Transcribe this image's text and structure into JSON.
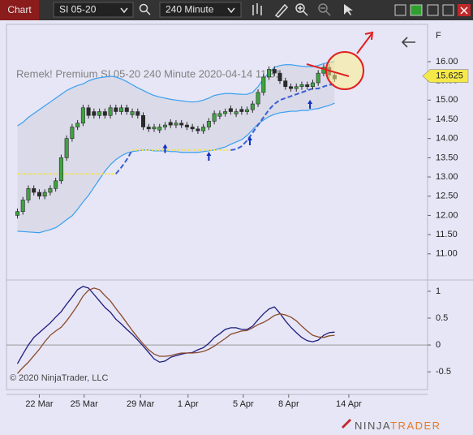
{
  "toolbar": {
    "tab": "Chart",
    "instrument": "SI 05-20",
    "interval": "240 Minute"
  },
  "chart_data": [
    {
      "type": "candlestick",
      "title": "Remek!  Premium  SI 05-20  240 Minute  2020-04-14 11:31",
      "corner_label": "F",
      "copyright": "© 2020 NinjaTrader, LLC",
      "logo_left": "NINJA",
      "logo_right": "TRADER",
      "x": [
        2,
        3,
        4,
        5,
        6,
        7,
        8,
        9,
        10,
        11,
        12,
        13,
        14,
        15,
        16,
        17,
        18,
        19,
        20,
        21,
        22,
        23,
        24,
        25,
        26,
        27,
        28,
        29,
        30,
        31,
        32,
        33,
        34,
        35,
        36,
        37,
        38,
        39,
        40,
        41,
        42,
        43,
        44,
        45,
        46,
        47,
        48,
        49,
        50,
        51,
        52,
        53,
        54,
        55,
        56,
        57,
        58,
        59,
        60
      ],
      "open": [
        12.0,
        12.1,
        12.4,
        12.7,
        12.6,
        12.5,
        12.6,
        12.7,
        12.9,
        13.5,
        14.0,
        14.3,
        14.4,
        14.8,
        14.7,
        14.6,
        14.7,
        14.6,
        14.8,
        14.7,
        14.8,
        14.62,
        14.7,
        14.6,
        14.3,
        14.25,
        14.22,
        14.3,
        14.42,
        14.35,
        14.4,
        14.35,
        14.3,
        14.25,
        14.2,
        14.3,
        14.45,
        14.58,
        14.65,
        14.78,
        14.64,
        14.76,
        14.7,
        14.75,
        14.9,
        15.2,
        15.6,
        15.8,
        15.7,
        15.5,
        15.35,
        15.3,
        15.35,
        15.4,
        15.35,
        15.45,
        15.7,
        15.85,
        15.65
      ],
      "high": [
        12.18,
        12.48,
        12.78,
        12.78,
        12.68,
        12.68,
        12.78,
        12.98,
        13.58,
        14.08,
        14.38,
        14.48,
        14.88,
        14.88,
        14.78,
        14.78,
        14.78,
        14.88,
        14.88,
        14.88,
        14.88,
        14.78,
        14.78,
        14.68,
        14.38,
        14.38,
        14.38,
        14.43,
        14.5,
        14.48,
        14.48,
        14.43,
        14.38,
        14.33,
        14.38,
        14.53,
        14.73,
        14.73,
        14.78,
        14.86,
        14.78,
        14.84,
        14.83,
        14.98,
        15.28,
        15.68,
        15.88,
        15.88,
        15.78,
        15.58,
        15.43,
        15.43,
        15.48,
        15.48,
        15.53,
        15.78,
        15.93,
        15.93,
        15.73
      ],
      "low": [
        11.92,
        12.02,
        12.32,
        12.52,
        12.42,
        12.42,
        12.52,
        12.62,
        12.82,
        13.42,
        13.92,
        14.22,
        14.32,
        14.52,
        14.52,
        14.52,
        14.52,
        14.52,
        14.62,
        14.62,
        14.62,
        14.54,
        14.52,
        14.22,
        14.17,
        14.17,
        14.14,
        14.22,
        14.27,
        14.27,
        14.27,
        14.22,
        14.17,
        14.12,
        14.12,
        14.22,
        14.37,
        14.5,
        14.57,
        14.62,
        14.56,
        14.62,
        14.62,
        14.67,
        14.82,
        15.12,
        15.52,
        15.62,
        15.42,
        15.27,
        15.22,
        15.22,
        15.27,
        15.27,
        15.27,
        15.37,
        15.62,
        15.57,
        15.47
      ],
      "close": [
        12.1,
        12.4,
        12.7,
        12.6,
        12.5,
        12.6,
        12.7,
        12.9,
        13.5,
        14.0,
        14.3,
        14.4,
        14.8,
        14.6,
        14.6,
        14.7,
        14.6,
        14.8,
        14.7,
        14.8,
        14.7,
        14.7,
        14.6,
        14.3,
        14.25,
        14.3,
        14.3,
        14.35,
        14.35,
        14.4,
        14.35,
        14.3,
        14.25,
        14.2,
        14.3,
        14.45,
        14.65,
        14.65,
        14.7,
        14.7,
        14.7,
        14.7,
        14.75,
        14.9,
        15.2,
        15.6,
        15.8,
        15.7,
        15.5,
        15.35,
        15.3,
        15.35,
        15.4,
        15.35,
        15.45,
        15.7,
        15.85,
        15.65,
        15.55
      ],
      "up_color": "#3fa33f",
      "down_color": "#2a2a2a",
      "wick_color": "#2a2a2a",
      "band_fill": "#d6d6e4",
      "overlays": [
        {
          "color": "#3a9ff0",
          "style": "solid",
          "values": [
            14.33,
            14.42,
            14.55,
            14.65,
            14.75,
            14.85,
            14.95,
            15.05,
            15.15,
            15.25,
            15.32,
            15.38,
            15.42,
            15.5,
            15.55,
            15.58,
            15.6,
            15.62,
            15.6,
            15.55,
            15.48,
            15.4,
            15.32,
            15.25,
            15.18,
            15.12,
            15.08,
            15.05,
            15.02,
            15.0,
            14.98,
            14.96,
            14.95,
            14.96,
            15.0,
            15.05,
            15.12,
            15.15,
            15.17,
            15.17,
            15.16,
            15.15,
            15.15,
            15.2,
            15.35,
            15.55,
            15.72,
            15.85,
            15.9,
            15.92,
            15.92,
            15.9,
            15.88,
            15.87,
            15.87,
            15.9,
            15.95,
            15.98,
            16.0
          ]
        },
        {
          "color": "#3a9ff0",
          "style": "solid",
          "values": [
            11.59,
            11.58,
            11.57,
            11.56,
            11.55,
            11.59,
            11.63,
            11.68,
            11.78,
            11.89,
            11.99,
            12.16,
            12.35,
            12.52,
            12.73,
            12.94,
            13.15,
            13.32,
            13.45,
            13.55,
            13.62,
            13.66,
            13.68,
            13.7,
            13.7,
            13.68,
            13.68,
            13.68,
            13.66,
            13.66,
            13.64,
            13.64,
            13.64,
            13.64,
            13.66,
            13.68,
            13.7,
            13.74,
            13.78,
            13.85,
            13.91,
            13.97,
            14.08,
            14.23,
            14.38,
            14.48,
            14.57,
            14.63,
            14.67,
            14.69,
            14.71,
            14.71,
            14.73,
            14.73,
            14.76,
            14.78,
            14.82,
            14.86,
            14.92
          ]
        },
        {
          "color": "#f2e04a",
          "style": "dotted",
          "values": [
            13.08,
            13.08,
            13.08,
            13.08,
            13.08,
            13.08,
            13.08,
            13.08,
            13.08,
            13.08,
            13.08,
            13.08,
            13.08,
            13.08,
            13.08,
            13.08,
            13.08,
            13.08,
            13.08,
            null,
            null,
            13.7,
            13.7,
            13.7,
            13.7,
            13.7,
            13.7,
            13.7,
            13.7,
            13.7,
            13.7,
            13.7,
            13.7,
            13.7,
            13.7,
            13.7,
            13.7,
            13.7,
            13.7,
            13.7,
            null,
            null,
            null,
            null,
            null,
            null,
            null,
            null,
            null,
            null,
            null,
            null,
            null,
            null,
            null,
            null,
            null,
            null,
            null
          ]
        },
        {
          "color": "#3b5fd4",
          "style": "dashed",
          "values": [
            null,
            null,
            null,
            null,
            null,
            null,
            null,
            null,
            null,
            null,
            null,
            null,
            null,
            null,
            null,
            null,
            null,
            null,
            13.08,
            13.25,
            13.45,
            13.7,
            null,
            null,
            null,
            null,
            null,
            null,
            null,
            null,
            null,
            null,
            null,
            null,
            null,
            null,
            null,
            null,
            null,
            13.7,
            13.72,
            13.8,
            13.95,
            14.15,
            14.35,
            14.55,
            14.75,
            14.9,
            15.0,
            15.05,
            15.1,
            15.15,
            15.2,
            15.25,
            15.3,
            15.3,
            15.35,
            15.4,
            15.4
          ]
        }
      ],
      "signals": {
        "x": [
          29,
          37,
          44.5,
          55.5
        ],
        "values": [
          13.75,
          13.55,
          13.95,
          14.9
        ],
        "color": "#1030c0"
      },
      "last_price": 15.625,
      "last_price_color": "#f5e94a",
      "xlim": [
        0,
        77
      ],
      "ylim": [
        10.32,
        16.97
      ],
      "yticks": [
        {
          "value": 11,
          "label": "11.00"
        },
        {
          "value": 11.5,
          "label": "11.50"
        },
        {
          "value": 12,
          "label": "12.00"
        },
        {
          "value": 12.5,
          "label": "12.50"
        },
        {
          "value": 13,
          "label": "13.00"
        },
        {
          "value": 13.5,
          "label": "13.50"
        },
        {
          "value": 14,
          "label": "14.00"
        },
        {
          "value": 14.5,
          "label": "14.50"
        },
        {
          "value": 15,
          "label": "15.00"
        },
        {
          "value": 15.5,
          "label": "15.50"
        },
        {
          "value": 16,
          "label": "16.00"
        }
      ]
    },
    {
      "type": "line",
      "x": [
        2,
        3,
        4,
        5,
        6,
        7,
        8,
        9,
        10,
        11,
        12,
        13,
        14,
        15,
        16,
        17,
        18,
        19,
        20,
        21,
        22,
        23,
        24,
        25,
        26,
        27,
        28,
        29,
        30,
        31,
        32,
        33,
        34,
        35,
        36,
        37,
        38,
        39,
        40,
        41,
        42,
        43,
        44,
        45,
        46,
        47,
        48,
        49,
        50,
        51,
        52,
        53,
        54,
        55,
        56,
        57,
        58,
        59,
        60
      ],
      "series": [
        {
          "color": "#1c1c7c",
          "values": [
            -0.35,
            -0.17,
            0,
            0.14,
            0.23,
            0.32,
            0.41,
            0.52,
            0.62,
            0.76,
            0.89,
            1.03,
            1.09,
            1.06,
            0.94,
            0.82,
            0.7,
            0.61,
            0.48,
            0.39,
            0.29,
            0.2,
            0.09,
            -0.02,
            -0.14,
            -0.26,
            -0.32,
            -0.3,
            -0.23,
            -0.2,
            -0.17,
            -0.15,
            -0.14,
            -0.09,
            -0.05,
            0.03,
            0.14,
            0.21,
            0.29,
            0.32,
            0.32,
            0.29,
            0.29,
            0.35,
            0.47,
            0.58,
            0.67,
            0.71,
            0.59,
            0.45,
            0.33,
            0.23,
            0.14,
            0.08,
            0.06,
            0.09,
            0.18,
            0.23,
            0.24
          ]
        },
        {
          "color": "#8b4a2a",
          "values": [
            -0.53,
            -0.42,
            -0.32,
            -0.2,
            -0.08,
            0.06,
            0.18,
            0.26,
            0.33,
            0.45,
            0.59,
            0.74,
            0.91,
            1.02,
            1.06,
            1.03,
            0.92,
            0.82,
            0.68,
            0.55,
            0.41,
            0.27,
            0.14,
            0.02,
            -0.09,
            -0.17,
            -0.21,
            -0.21,
            -0.2,
            -0.17,
            -0.15,
            -0.15,
            -0.15,
            -0.14,
            -0.12,
            -0.08,
            -0.02,
            0.05,
            0.12,
            0.2,
            0.23,
            0.26,
            0.27,
            0.32,
            0.38,
            0.42,
            0.48,
            0.55,
            0.58,
            0.56,
            0.52,
            0.45,
            0.35,
            0.26,
            0.18,
            0.15,
            0.14,
            0.17,
            0.18
          ]
        }
      ],
      "zero_line": true,
      "xlim": [
        0,
        77
      ],
      "xticks": [
        {
          "value": 6,
          "label": "22 Mar"
        },
        {
          "value": 14.2,
          "label": "25 Mar"
        },
        {
          "value": 24.5,
          "label": "29 Mar"
        },
        {
          "value": 33.2,
          "label": "1 Apr"
        },
        {
          "value": 43.3,
          "label": "5 Apr"
        },
        {
          "value": 51.6,
          "label": "8 Apr"
        },
        {
          "value": 62.6,
          "label": "14 Apr"
        }
      ],
      "ylim": [
        -0.83,
        1.21
      ],
      "yticks": [
        -0.5,
        0,
        0.5,
        1
      ]
    }
  ]
}
